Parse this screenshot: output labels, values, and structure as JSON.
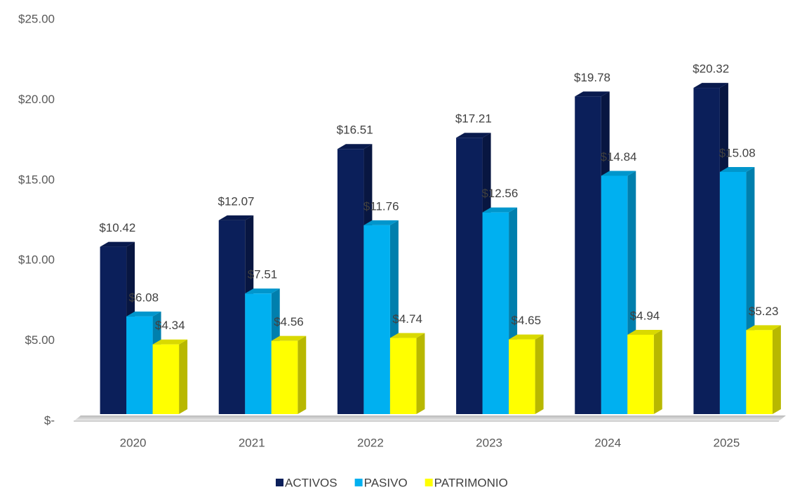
{
  "chart_data": {
    "type": "bar3d",
    "categories": [
      "2020",
      "2021",
      "2022",
      "2023",
      "2024",
      "2025"
    ],
    "series": [
      {
        "name": "ACTIVOS",
        "color": "#0b1f5a",
        "values": [
          10.42,
          12.07,
          16.51,
          17.21,
          19.78,
          20.32
        ],
        "value_labels": [
          "$10.42",
          "$12.07",
          "$16.51",
          "$17.21",
          "$19.78",
          "$20.32"
        ]
      },
      {
        "name": "PASIVO",
        "color": "#00b0f0",
        "values": [
          6.08,
          7.51,
          11.76,
          12.56,
          14.84,
          15.08
        ],
        "value_labels": [
          "$6.08",
          "$7.51",
          "$11.76",
          "$12.56",
          "$14.84",
          "$15.08"
        ]
      },
      {
        "name": "PATRIMONIO",
        "color": "#ffff00",
        "values": [
          4.34,
          4.56,
          4.74,
          4.65,
          4.94,
          5.23
        ],
        "value_labels": [
          "$4.34",
          "$4.56",
          "$4.74",
          "$4.65",
          "$4.94",
          "$5.23"
        ]
      }
    ],
    "ylim": [
      0,
      25
    ],
    "yticks": [
      {
        "value": 0,
        "label": "$-"
      },
      {
        "value": 5,
        "label": "$5.00"
      },
      {
        "value": 10,
        "label": "$10.00"
      },
      {
        "value": 15,
        "label": "$15.00"
      },
      {
        "value": 20,
        "label": "$20.00"
      },
      {
        "value": 25,
        "label": "$25.00"
      }
    ],
    "legend": "bottom"
  }
}
